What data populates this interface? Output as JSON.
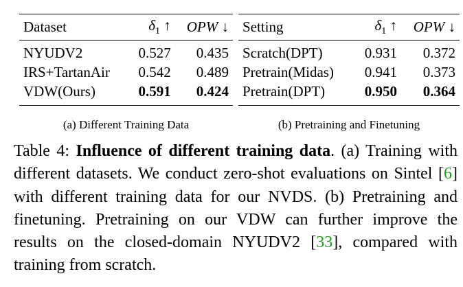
{
  "table_a": {
    "headers": [
      "Dataset",
      "δ",
      "1",
      "↑",
      "OPW",
      "↓"
    ],
    "rows": [
      {
        "name": "NYUDV2",
        "delta1": "0.527",
        "opw": "0.435",
        "bold": false
      },
      {
        "name": "IRS+TartanAir",
        "delta1": "0.542",
        "opw": "0.489",
        "bold": false
      },
      {
        "name": "VDW(Ours)",
        "delta1": "0.591",
        "opw": "0.424",
        "bold": true
      }
    ],
    "subcaption": "(a) Different Training Data"
  },
  "table_b": {
    "headers": [
      "Setting",
      "δ",
      "1",
      "↑",
      "OPW",
      "↓"
    ],
    "rows": [
      {
        "name": "Scratch(DPT)",
        "delta1": "0.931",
        "opw": "0.372",
        "bold": false
      },
      {
        "name": "Pretrain(Midas)",
        "delta1": "0.941",
        "opw": "0.373",
        "bold": false
      },
      {
        "name": "Pretrain(DPT)",
        "delta1": "0.950",
        "opw": "0.364",
        "bold": true
      }
    ],
    "subcaption": "(b) Pretraining and Finetuning"
  },
  "caption": {
    "label": "Table 4:",
    "title": "Influence of different training data",
    "part1": ". (a) Training with different datasets. We conduct zero-shot evaluations on Sintel [",
    "cite1": "6",
    "part2": "] with different training data for our NVDS. (b) Pretraining and finetuning. Pretraining on our VDW can further improve the results on the closed-domain NYUDV2 [",
    "cite2": "33",
    "part3": "], compared with training from scratch."
  },
  "colors": {
    "citation": "#1a9e1a"
  }
}
